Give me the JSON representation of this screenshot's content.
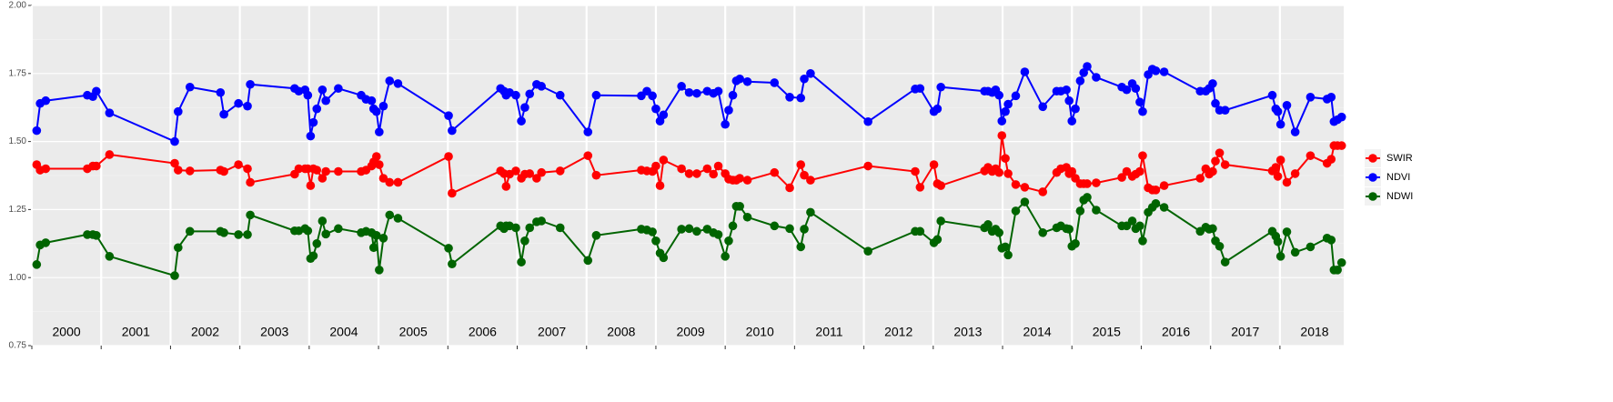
{
  "chart_data": {
    "type": "line",
    "x": [
      2000.07,
      2000.12,
      2000.2,
      2000.8,
      2000.88,
      2000.93,
      2001.12,
      2002.06,
      2002.11,
      2002.28,
      2002.72,
      2002.77,
      2002.98,
      2003.11,
      2003.15,
      2003.79,
      2003.85,
      2003.94,
      2003.98,
      2004.02,
      2004.06,
      2004.11,
      2004.19,
      2004.24,
      2004.42,
      2004.75,
      2004.82,
      2004.9,
      2004.93,
      2004.97,
      2005.01,
      2005.07,
      2005.16,
      2005.28,
      2006.01,
      2006.06,
      2006.76,
      2006.81,
      2006.84,
      2006.89,
      2006.98,
      2007.06,
      2007.11,
      2007.18,
      2007.28,
      2007.35,
      2007.62,
      2008.02,
      2008.14,
      2008.79,
      2008.87,
      2008.95,
      2009.0,
      2009.06,
      2009.11,
      2009.37,
      2009.48,
      2009.59,
      2009.74,
      2009.83,
      2009.9,
      2010.0,
      2010.05,
      2010.11,
      2010.16,
      2010.21,
      2010.32,
      2010.71,
      2010.93,
      2011.09,
      2011.14,
      2011.23,
      2012.06,
      2012.74,
      2012.81,
      2013.01,
      2013.06,
      2013.11,
      2013.74,
      2013.79,
      2013.85,
      2013.9,
      2013.95,
      2013.99,
      2014.04,
      2014.08,
      2014.19,
      2014.32,
      2014.58,
      2014.78,
      2014.84,
      2014.92,
      2014.96,
      2015.0,
      2015.05,
      2015.12,
      2015.17,
      2015.22,
      2015.35,
      2015.72,
      2015.79,
      2015.87,
      2015.92,
      2015.98,
      2016.02,
      2016.1,
      2016.16,
      2016.21,
      2016.33,
      2016.85,
      2016.93,
      2016.98,
      2017.03,
      2017.07,
      2017.13,
      2017.21,
      2017.89,
      2017.94,
      2017.97,
      2018.01,
      2018.1,
      2018.22,
      2018.44,
      2018.68,
      2018.74,
      2018.78,
      2018.83,
      2018.89
    ],
    "series": [
      {
        "name": "SWIR",
        "color": "#ff0000",
        "values": [
          1.415,
          1.395,
          1.4,
          1.4,
          1.41,
          1.41,
          1.452,
          1.42,
          1.395,
          1.392,
          1.395,
          1.39,
          1.415,
          1.4,
          1.35,
          1.38,
          1.4,
          1.4,
          1.4,
          1.338,
          1.4,
          1.395,
          1.365,
          1.39,
          1.39,
          1.39,
          1.395,
          1.41,
          1.425,
          1.445,
          1.415,
          1.365,
          1.35,
          1.35,
          1.445,
          1.31,
          1.392,
          1.382,
          1.335,
          1.38,
          1.392,
          1.365,
          1.38,
          1.382,
          1.365,
          1.386,
          1.392,
          1.448,
          1.376,
          1.395,
          1.392,
          1.39,
          1.41,
          1.338,
          1.432,
          1.4,
          1.382,
          1.382,
          1.4,
          1.38,
          1.41,
          1.382,
          1.362,
          1.358,
          1.358,
          1.365,
          1.358,
          1.386,
          1.33,
          1.415,
          1.376,
          1.358,
          1.41,
          1.39,
          1.332,
          1.415,
          1.345,
          1.338,
          1.392,
          1.405,
          1.39,
          1.4,
          1.386,
          1.522,
          1.438,
          1.382,
          1.342,
          1.332,
          1.315,
          1.386,
          1.4,
          1.405,
          1.382,
          1.39,
          1.365,
          1.345,
          1.345,
          1.345,
          1.348,
          1.368,
          1.39,
          1.372,
          1.38,
          1.39,
          1.448,
          1.33,
          1.322,
          1.322,
          1.338,
          1.365,
          1.4,
          1.38,
          1.39,
          1.428,
          1.458,
          1.415,
          1.392,
          1.405,
          1.372,
          1.432,
          1.35,
          1.382,
          1.448,
          1.42,
          1.435,
          1.485,
          1.485,
          1.485
        ]
      },
      {
        "name": "NDVI",
        "color": "#0000ff",
        "values": [
          1.54,
          1.64,
          1.65,
          1.67,
          1.665,
          1.685,
          1.605,
          1.5,
          1.61,
          1.7,
          1.68,
          1.6,
          1.64,
          1.63,
          1.71,
          1.695,
          1.685,
          1.69,
          1.67,
          1.52,
          1.57,
          1.62,
          1.69,
          1.65,
          1.695,
          1.67,
          1.655,
          1.65,
          1.62,
          1.61,
          1.535,
          1.63,
          1.723,
          1.713,
          1.595,
          1.54,
          1.695,
          1.685,
          1.67,
          1.68,
          1.67,
          1.575,
          1.625,
          1.675,
          1.71,
          1.703,
          1.67,
          1.535,
          1.67,
          1.668,
          1.685,
          1.668,
          1.62,
          1.575,
          1.598,
          1.703,
          1.68,
          1.677,
          1.685,
          1.677,
          1.685,
          1.563,
          1.615,
          1.67,
          1.723,
          1.73,
          1.72,
          1.716,
          1.663,
          1.66,
          1.73,
          1.75,
          1.573,
          1.693,
          1.695,
          1.61,
          1.62,
          1.7,
          1.685,
          1.685,
          1.68,
          1.69,
          1.67,
          1.575,
          1.61,
          1.637,
          1.668,
          1.756,
          1.628,
          1.685,
          1.685,
          1.69,
          1.65,
          1.575,
          1.62,
          1.723,
          1.753,
          1.776,
          1.736,
          1.7,
          1.69,
          1.713,
          1.695,
          1.645,
          1.61,
          1.746,
          1.766,
          1.76,
          1.756,
          1.685,
          1.685,
          1.695,
          1.713,
          1.64,
          1.615,
          1.615,
          1.67,
          1.62,
          1.61,
          1.563,
          1.633,
          1.535,
          1.663,
          1.656,
          1.663,
          1.573,
          1.58,
          1.59
        ]
      },
      {
        "name": "NDWI",
        "color": "#006400",
        "values": [
          1.048,
          1.12,
          1.128,
          1.158,
          1.158,
          1.155,
          1.078,
          1.007,
          1.11,
          1.17,
          1.17,
          1.165,
          1.158,
          1.158,
          1.23,
          1.172,
          1.172,
          1.18,
          1.172,
          1.07,
          1.08,
          1.125,
          1.208,
          1.16,
          1.18,
          1.165,
          1.17,
          1.165,
          1.11,
          1.155,
          1.028,
          1.145,
          1.23,
          1.218,
          1.108,
          1.05,
          1.19,
          1.18,
          1.19,
          1.19,
          1.183,
          1.057,
          1.135,
          1.183,
          1.205,
          1.208,
          1.183,
          1.063,
          1.155,
          1.178,
          1.175,
          1.168,
          1.135,
          1.09,
          1.073,
          1.178,
          1.18,
          1.17,
          1.178,
          1.165,
          1.158,
          1.078,
          1.135,
          1.19,
          1.262,
          1.262,
          1.222,
          1.19,
          1.18,
          1.113,
          1.178,
          1.24,
          1.097,
          1.17,
          1.17,
          1.128,
          1.14,
          1.208,
          1.183,
          1.195,
          1.17,
          1.178,
          1.165,
          1.108,
          1.113,
          1.083,
          1.245,
          1.278,
          1.165,
          1.183,
          1.19,
          1.18,
          1.178,
          1.115,
          1.125,
          1.245,
          1.285,
          1.295,
          1.248,
          1.19,
          1.19,
          1.208,
          1.18,
          1.19,
          1.135,
          1.24,
          1.258,
          1.272,
          1.258,
          1.17,
          1.185,
          1.178,
          1.18,
          1.135,
          1.115,
          1.057,
          1.17,
          1.152,
          1.132,
          1.078,
          1.168,
          1.093,
          1.113,
          1.145,
          1.138,
          1.028,
          1.028,
          1.055
        ]
      }
    ],
    "xlim": [
      2000,
      2018.92
    ],
    "xticks": [
      2000,
      2001,
      2002,
      2003,
      2004,
      2005,
      2006,
      2007,
      2008,
      2009,
      2010,
      2011,
      2012,
      2013,
      2014,
      2015,
      2016,
      2017,
      2018
    ],
    "ylim": [
      0.75,
      2.0
    ],
    "yticks": [
      {
        "value": 0.75,
        "label": "0.75"
      },
      {
        "value": 1,
        "label": "1.00"
      },
      {
        "value": 1.25,
        "label": "1.25"
      },
      {
        "value": 1.5,
        "label": "1.50"
      },
      {
        "value": 1.75,
        "label": "1.75"
      },
      {
        "value": 2,
        "label": "2.00"
      }
    ],
    "year_labels": [
      {
        "value": 2000.5,
        "label": "2000"
      },
      {
        "value": 2001.5,
        "label": "2001"
      },
      {
        "value": 2002.5,
        "label": "2002"
      },
      {
        "value": 2003.5,
        "label": "2003"
      },
      {
        "value": 2004.5,
        "label": "2004"
      },
      {
        "value": 2005.5,
        "label": "2005"
      },
      {
        "value": 2006.5,
        "label": "2006"
      },
      {
        "value": 2007.5,
        "label": "2007"
      },
      {
        "value": 2008.5,
        "label": "2008"
      },
      {
        "value": 2009.5,
        "label": "2009"
      },
      {
        "value": 2010.5,
        "label": "2010"
      },
      {
        "value": 2011.5,
        "label": "2011"
      },
      {
        "value": 2012.5,
        "label": "2012"
      },
      {
        "value": 2013.5,
        "label": "2013"
      },
      {
        "value": 2014.5,
        "label": "2014"
      },
      {
        "value": 2015.5,
        "label": "2015"
      },
      {
        "value": 2016.5,
        "label": "2016"
      },
      {
        "value": 2017.5,
        "label": "2017"
      },
      {
        "value": 2018.5,
        "label": "2018"
      }
    ],
    "grid": true,
    "legend": "right"
  }
}
